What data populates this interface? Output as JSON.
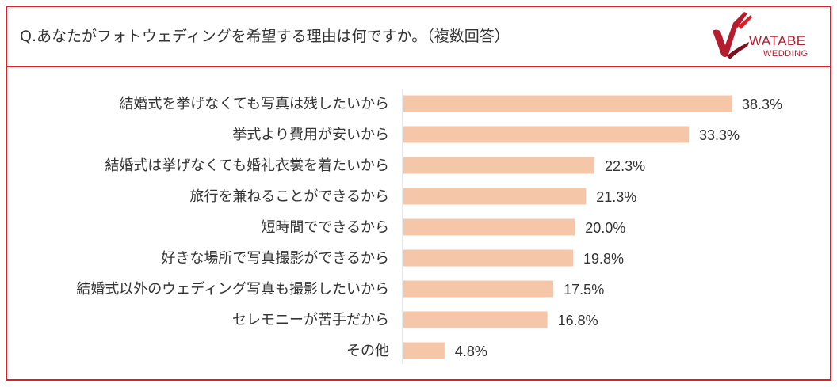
{
  "header": {
    "question": "Q.あなたがフォトウェディングを希望する理由は何ですか。（複数回答）",
    "logo_text": "WATABE",
    "logo_sub": "WEDDING"
  },
  "colors": {
    "frame": "#d9212a",
    "bar": "#f5c6a8",
    "axis": "#d0d0d0",
    "logo": "#b31d2e"
  },
  "chart_data": {
    "type": "bar",
    "orientation": "horizontal",
    "categories": [
      "結婚式を挙げなくても写真は残したいから",
      "挙式より費用が安いから",
      "結婚式は挙げなくても婚礼衣裳を着たいから",
      "旅行を兼ねることができるから",
      "短時間でできるから",
      "好きな場所で写真撮影ができるから",
      "結婚式以外のウェディング写真も撮影したいから",
      "セレモニーが苦手だから",
      "その他"
    ],
    "values": [
      38.3,
      33.3,
      22.3,
      21.3,
      20.0,
      19.8,
      17.5,
      16.8,
      4.8
    ],
    "value_labels": [
      "38.3%",
      "33.3%",
      "22.3%",
      "21.3%",
      "20.0%",
      "19.8%",
      "17.5%",
      "16.8%",
      "4.8%"
    ],
    "xlim": [
      0,
      40
    ],
    "grid": false,
    "legend": "none"
  }
}
